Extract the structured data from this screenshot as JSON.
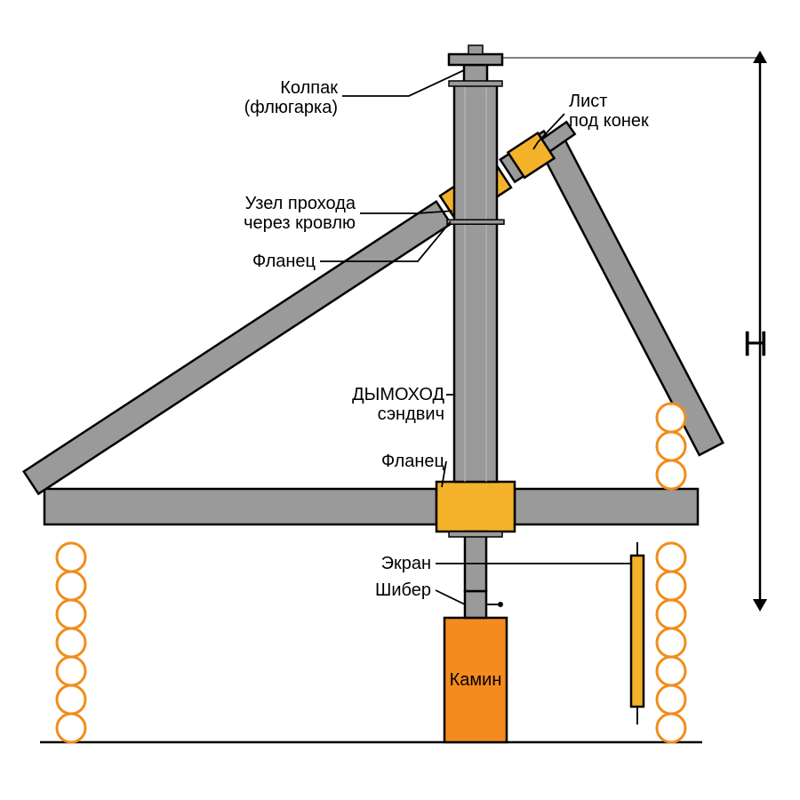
{
  "diagram": {
    "type": "infographic",
    "background_color": "#ffffff",
    "stroke_color": "#000000",
    "stroke_width": 2.5,
    "label_fontsize": 20,
    "big_label_fontsize": 40,
    "colors": {
      "pipe_fill": "#9a9a9a",
      "pipe_edge": "#000000",
      "roof_fill": "#9a9a9a",
      "floor_fill": "#9a9a9a",
      "log_fill": "#ffffff",
      "log_stroke": "#f28c1b",
      "insulation_fill": "#f3b22a",
      "fireplace_fill": "#f58a1f",
      "screen_fill": "#f3b22a",
      "leader_color": "#000000"
    },
    "labels": {
      "cap": "Колпак\n(флюгарка)",
      "ridge_sheet": "Лист\nпод конек",
      "roof_passage": "Узел прохода\nчерез кровлю",
      "flange1": "Фланец",
      "chimney": "ДЫМОХОД\nсэндвич",
      "flange2": "Фланец",
      "screen": "Экран",
      "damper": "Шибер",
      "fireplace": "Камин",
      "height": "H"
    },
    "log_radius": 16,
    "log_stroke_width": 3,
    "leader_width": 1.8,
    "arrow_size": 14
  }
}
